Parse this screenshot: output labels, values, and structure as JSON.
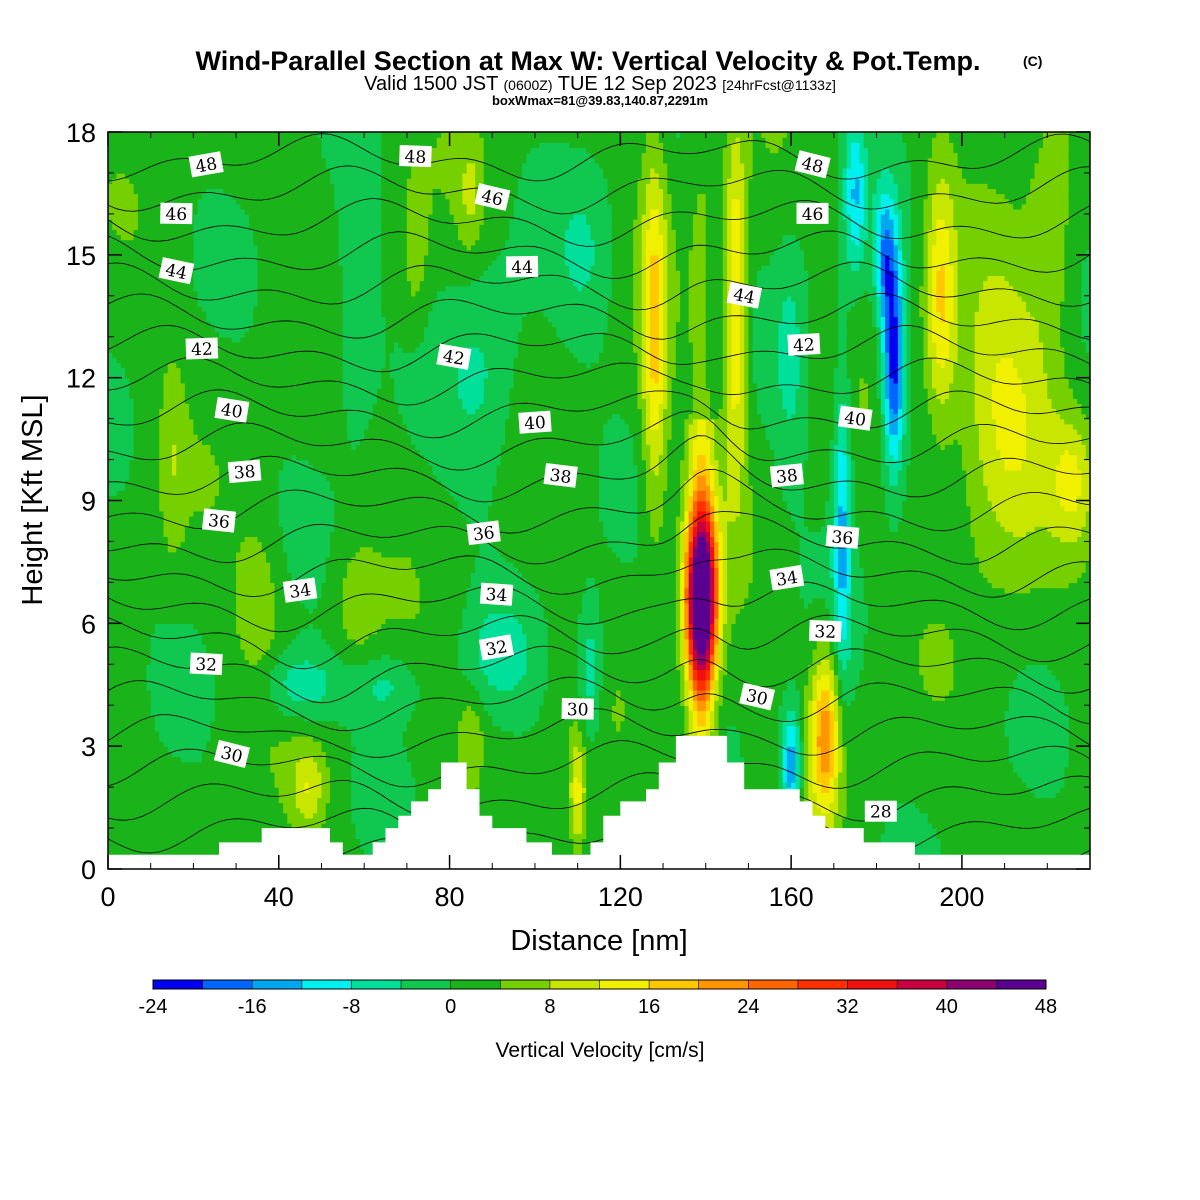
{
  "chart_data": {
    "type": "heatmap",
    "title": "Wind-Parallel Section at Max W: Vertical Velocity & Pot.Temp.",
    "title_mark": "(C)",
    "subtitle": {
      "prefix": "Valid 1500 JST",
      "utc": "(0600Z)",
      "date": "TUE 12 Sep 2023",
      "forecast": "[24hrFcst@1133z]"
    },
    "box_info": "boxWmax=81@39.83,140.87,2291m",
    "xlabel": "Distance [nm]",
    "ylabel": "Height [Kft MSL]",
    "xlim": [
      0,
      230
    ],
    "ylim": [
      0,
      18
    ],
    "x_ticks": [
      0,
      40,
      80,
      120,
      160,
      200
    ],
    "y_ticks": [
      0,
      3,
      6,
      9,
      12,
      15,
      18
    ],
    "colorbar": {
      "label": "Vertical Velocity [cm/s]",
      "ticks": [
        -24,
        -16,
        -8,
        0,
        8,
        16,
        24,
        32,
        40,
        48
      ],
      "levels": [
        -24,
        -20,
        -16,
        -12,
        -8,
        -4,
        0,
        4,
        8,
        12,
        16,
        20,
        24,
        28,
        32,
        36,
        40,
        44,
        48
      ],
      "colors": [
        "#0000f0",
        "#0066ff",
        "#00a8f0",
        "#00f0f0",
        "#00e09a",
        "#10c850",
        "#1ab41a",
        "#76d000",
        "#c8e600",
        "#f0f000",
        "#ffc800",
        "#ff9600",
        "#ff6400",
        "#ff3000",
        "#f01010",
        "#c80040",
        "#8c0070",
        "#5a0090"
      ]
    },
    "features": [
      {
        "x": 139,
        "z": 6.5,
        "w": 48,
        "note": "updraft core"
      },
      {
        "x": 168,
        "z": 3.2,
        "w": 20
      },
      {
        "x": 184,
        "z": 12.4,
        "w": -22
      },
      {
        "x": 160,
        "z": 2.5,
        "w": -18
      },
      {
        "x": 45,
        "z": 4.5,
        "w": -8
      },
      {
        "x": 210,
        "z": 11,
        "w": 12
      },
      {
        "x": 128,
        "z": 13,
        "w": 16
      },
      {
        "x": 147,
        "z": 15,
        "w": 14
      }
    ],
    "theta_isentropes": [
      27,
      28,
      29,
      30,
      31,
      32,
      33,
      34,
      35,
      36,
      37,
      38,
      39,
      40,
      41,
      42,
      43,
      44,
      45,
      46,
      47,
      48,
      49
    ],
    "contour_labels": [
      {
        "value": "48",
        "x": 23,
        "z": 17.2
      },
      {
        "value": "48",
        "x": 72,
        "z": 17.4
      },
      {
        "value": "48",
        "x": 165,
        "z": 17.2
      },
      {
        "value": "46",
        "x": 16,
        "z": 16.0
      },
      {
        "value": "46",
        "x": 90,
        "z": 16.4
      },
      {
        "value": "46",
        "x": 165,
        "z": 16.0
      },
      {
        "value": "44",
        "x": 16,
        "z": 14.6
      },
      {
        "value": "44",
        "x": 97,
        "z": 14.7
      },
      {
        "value": "44",
        "x": 149,
        "z": 14.0
      },
      {
        "value": "42",
        "x": 22,
        "z": 12.7
      },
      {
        "value": "42",
        "x": 81,
        "z": 12.5
      },
      {
        "value": "42",
        "x": 163,
        "z": 12.8
      },
      {
        "value": "40",
        "x": 29,
        "z": 11.2
      },
      {
        "value": "40",
        "x": 100,
        "z": 10.9
      },
      {
        "value": "40",
        "x": 175,
        "z": 11.0
      },
      {
        "value": "38",
        "x": 32,
        "z": 9.7
      },
      {
        "value": "38",
        "x": 106,
        "z": 9.6
      },
      {
        "value": "38",
        "x": 159,
        "z": 9.6
      },
      {
        "value": "36",
        "x": 26,
        "z": 8.5
      },
      {
        "value": "36",
        "x": 88,
        "z": 8.2
      },
      {
        "value": "36",
        "x": 172,
        "z": 8.1
      },
      {
        "value": "34",
        "x": 45,
        "z": 6.8
      },
      {
        "value": "34",
        "x": 91,
        "z": 6.7
      },
      {
        "value": "34",
        "x": 159,
        "z": 7.1
      },
      {
        "value": "32",
        "x": 23,
        "z": 5.0
      },
      {
        "value": "32",
        "x": 91,
        "z": 5.4
      },
      {
        "value": "32",
        "x": 168,
        "z": 5.8
      },
      {
        "value": "30",
        "x": 29,
        "z": 2.8
      },
      {
        "value": "30",
        "x": 110,
        "z": 3.9
      },
      {
        "value": "30",
        "x": 152,
        "z": 4.2
      },
      {
        "value": "28",
        "x": 181,
        "z": 1.4
      }
    ],
    "terrain": [
      [
        0,
        0.35
      ],
      [
        26,
        0.35
      ],
      [
        26,
        0.65
      ],
      [
        36,
        0.65
      ],
      [
        36,
        1.0
      ],
      [
        52,
        1.0
      ],
      [
        52,
        0.65
      ],
      [
        55,
        0.65
      ],
      [
        55,
        0.35
      ],
      [
        62,
        0.35
      ],
      [
        62,
        0.65
      ],
      [
        65,
        0.65
      ],
      [
        65,
        1.0
      ],
      [
        68,
        1.0
      ],
      [
        68,
        1.3
      ],
      [
        71,
        1.3
      ],
      [
        71,
        1.65
      ],
      [
        75,
        1.65
      ],
      [
        75,
        1.95
      ],
      [
        78,
        1.95
      ],
      [
        78,
        2.6
      ],
      [
        84,
        2.6
      ],
      [
        84,
        1.95
      ],
      [
        87,
        1.95
      ],
      [
        87,
        1.3
      ],
      [
        90,
        1.3
      ],
      [
        90,
        1.0
      ],
      [
        98,
        1.0
      ],
      [
        98,
        0.65
      ],
      [
        104,
        0.65
      ],
      [
        104,
        0.35
      ],
      [
        113,
        0.35
      ],
      [
        113,
        0.65
      ],
      [
        116,
        0.65
      ],
      [
        116,
        1.3
      ],
      [
        120,
        1.3
      ],
      [
        120,
        1.65
      ],
      [
        126,
        1.65
      ],
      [
        126,
        1.95
      ],
      [
        129,
        1.95
      ],
      [
        129,
        2.6
      ],
      [
        133,
        2.6
      ],
      [
        133,
        3.25
      ],
      [
        145,
        3.25
      ],
      [
        145,
        2.6
      ],
      [
        149,
        2.6
      ],
      [
        149,
        1.95
      ],
      [
        162,
        1.95
      ],
      [
        162,
        1.65
      ],
      [
        165,
        1.65
      ],
      [
        165,
        1.3
      ],
      [
        168,
        1.3
      ],
      [
        168,
        1.0
      ],
      [
        177,
        1.0
      ],
      [
        177,
        0.65
      ],
      [
        189,
        0.65
      ],
      [
        189,
        0.35
      ],
      [
        230,
        0.35
      ],
      [
        230,
        0
      ]
    ]
  }
}
